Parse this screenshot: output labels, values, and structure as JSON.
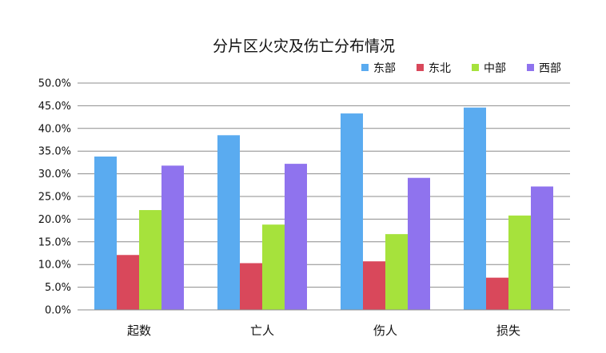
{
  "chart_data": {
    "type": "bar",
    "title": "分片区火灾及伤亡分布情况",
    "xlabel": "",
    "ylabel": "",
    "categories": [
      "起数",
      "亡人",
      "伤人",
      "损失"
    ],
    "series": [
      {
        "name": "东部",
        "color": "#5aabf0",
        "values": [
          33.8,
          38.5,
          43.3,
          44.6
        ]
      },
      {
        "name": "东北",
        "color": "#d9485b",
        "values": [
          12.1,
          10.3,
          10.7,
          7.1
        ]
      },
      {
        "name": "中部",
        "color": "#a6e23c",
        "values": [
          22.0,
          18.8,
          16.7,
          20.8
        ]
      },
      {
        "name": "西部",
        "color": "#8f73ee",
        "values": [
          31.8,
          32.2,
          29.1,
          27.2
        ]
      }
    ],
    "ylim": [
      0,
      50
    ],
    "yticks": [
      0,
      5,
      10,
      15,
      20,
      25,
      30,
      35,
      40,
      45,
      50
    ],
    "ytick_labels": [
      "0.0%",
      "5.0%",
      "10.0%",
      "15.0%",
      "20.0%",
      "25.0%",
      "30.0%",
      "35.0%",
      "40.0%",
      "45.0%",
      "50.0%"
    ],
    "grid": true,
    "legend_position": "top-right"
  }
}
